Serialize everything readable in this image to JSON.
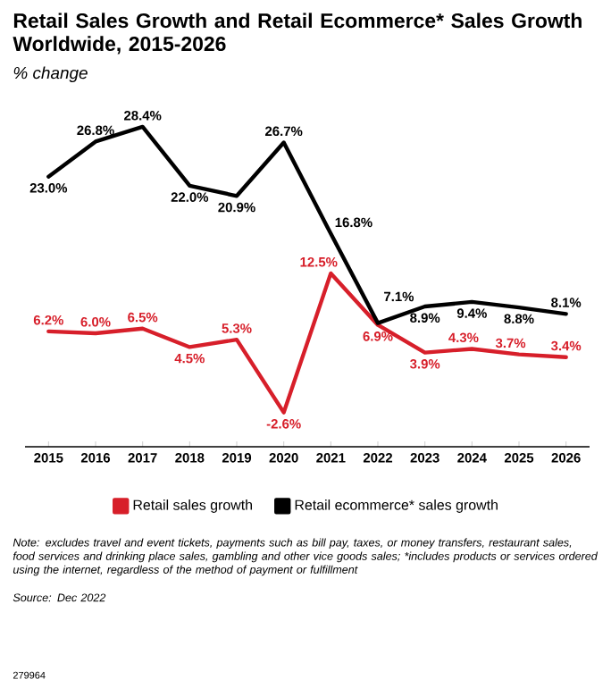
{
  "chart_data": {
    "type": "line",
    "title": "Retail Sales Growth and Retail Ecommerce* Sales Growth Worldwide, 2015-2026",
    "subtitle": "% change",
    "categories": [
      "2015",
      "2016",
      "2017",
      "2018",
      "2019",
      "2020",
      "2021",
      "2022",
      "2023",
      "2024",
      "2025",
      "2026"
    ],
    "series": [
      {
        "name": "Retail sales growth",
        "color": "#d71f2a",
        "values": [
          6.2,
          6.0,
          6.5,
          4.5,
          5.3,
          -2.6,
          12.5,
          6.9,
          3.9,
          4.3,
          3.7,
          3.4
        ],
        "value_labels": [
          "6.2%",
          "6.0%",
          "6.5%",
          "4.5%",
          "5.3%",
          "-2.6%",
          "12.5%",
          "6.9%",
          "3.9%",
          "4.3%",
          "3.7%",
          "3.4%"
        ]
      },
      {
        "name": "Retail ecommerce* sales growth",
        "color": "#000000",
        "values": [
          23.0,
          26.8,
          28.4,
          22.0,
          20.9,
          26.7,
          16.8,
          7.1,
          8.9,
          9.4,
          8.8,
          8.1
        ],
        "value_labels": [
          "23.0%",
          "26.8%",
          "28.4%",
          "22.0%",
          "20.9%",
          "26.7%",
          "16.8%",
          "7.1%",
          "8.9%",
          "9.4%",
          "8.8%",
          "8.1%"
        ]
      }
    ],
    "legend": "bottom",
    "marker": "none",
    "line_style": "solid",
    "annotations": [
      "Note: excludes travel and event tickets, payments such as bill pay, taxes, or money transfers, restaurant sales, food services and drinking place sales, gambling and other vice goods sales; *includes products or services ordered using the internet, regardless of the method of payment or fulfillment",
      "Source: Dec 2022",
      "279964"
    ]
  }
}
